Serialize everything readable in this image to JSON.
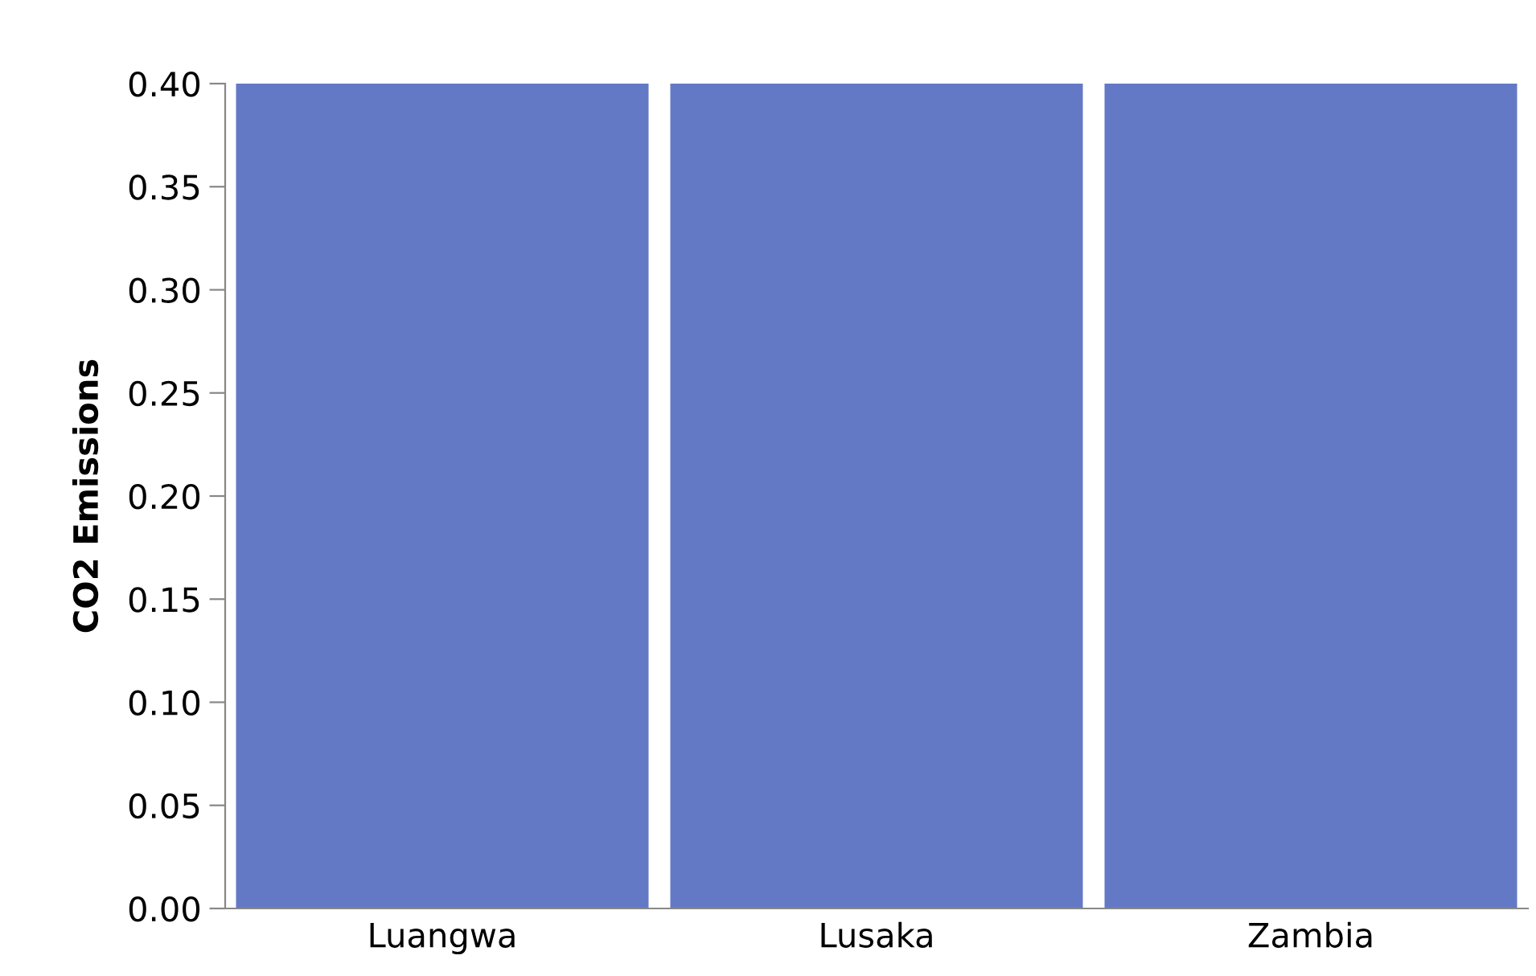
{
  "chart_data": {
    "type": "bar",
    "ylabel": "CO2 Emissions",
    "categories": [
      "Luangwa",
      "Lusaka",
      "Zambia"
    ],
    "values": [
      0.4,
      0.4,
      0.4
    ],
    "color": "#6479c6",
    "ylim": [
      0,
      0.4
    ],
    "yticks": [
      {
        "value": 0,
        "label": "0.00"
      },
      {
        "value": 0.05,
        "label": "0.05"
      },
      {
        "value": 0.1,
        "label": "0.10"
      },
      {
        "value": 0.15,
        "label": "0.15"
      },
      {
        "value": 0.2,
        "label": "0.20"
      },
      {
        "value": 0.25,
        "label": "0.25"
      },
      {
        "value": 0.3,
        "label": "0.30"
      },
      {
        "value": 0.35,
        "label": "0.35"
      },
      {
        "value": 0.4,
        "label": "0.40"
      }
    ],
    "grid": false,
    "legend": false
  }
}
